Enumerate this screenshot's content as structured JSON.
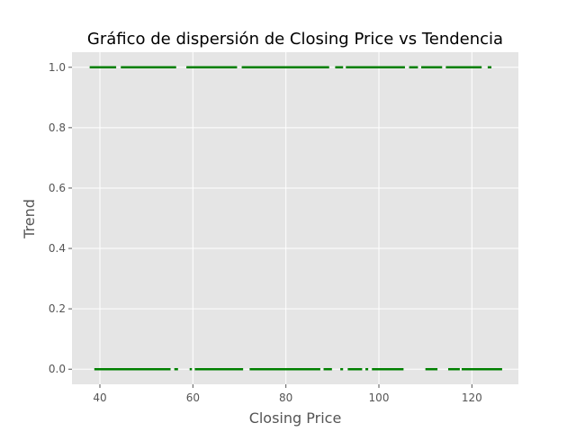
{
  "chart_data": {
    "type": "scatter",
    "title": "Gráfico de dispersión de Closing Price vs Tendencia",
    "xlabel": "Closing Price",
    "ylabel": "Trend",
    "xlim": [
      34,
      130
    ],
    "ylim": [
      -0.05,
      1.05
    ],
    "x_ticks": [
      "40",
      "60",
      "80",
      "100",
      "120"
    ],
    "y_ticks": [
      "0.0",
      "0.2",
      "0.4",
      "0.6",
      "0.8",
      "1.0"
    ],
    "grid": true,
    "legend": "none",
    "colors": {
      "points": "#008000",
      "plot_background": "#e5e5e5",
      "grid": "#ffffff"
    },
    "series": [
      {
        "y": 1,
        "x_ranges": [
          [
            37.8,
            43.5
          ],
          [
            44.5,
            56.4
          ],
          [
            58.6,
            69.5
          ],
          [
            70.5,
            89.3
          ],
          [
            90.6,
            92.3
          ],
          [
            92.9,
            105.6
          ],
          [
            106.5,
            108.4
          ],
          [
            109.1,
            113.6
          ],
          [
            114.4,
            122.1
          ],
          [
            123.4,
            124.2
          ]
        ]
      },
      {
        "y": 0,
        "x_ranges": [
          [
            38.8,
            55.2
          ],
          [
            56.0,
            56.8
          ],
          [
            59.3,
            59.8
          ],
          [
            60.4,
            70.8
          ],
          [
            72.2,
            87.4
          ],
          [
            88.1,
            89.9
          ],
          [
            91.7,
            92.3
          ],
          [
            93.3,
            96.4
          ],
          [
            97.1,
            97.7
          ],
          [
            98.5,
            105.3
          ],
          [
            110.0,
            112.6
          ],
          [
            114.9,
            117.4
          ],
          [
            117.8,
            126.5
          ]
        ]
      }
    ]
  }
}
